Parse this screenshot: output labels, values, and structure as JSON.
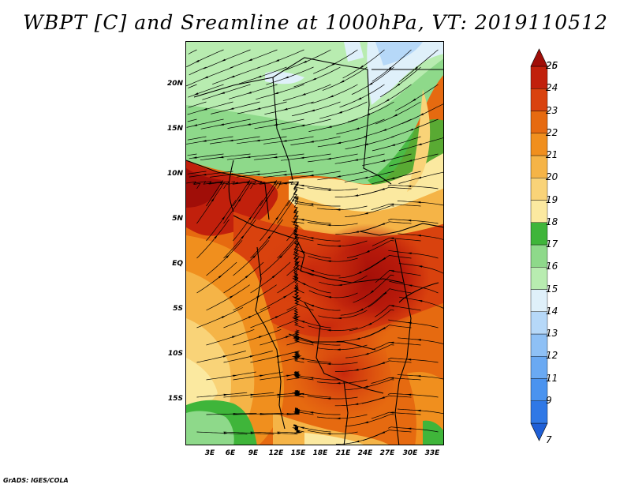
{
  "title": "WBPT [C] and Sreamline at 1000hPa, VT: 2019110512",
  "credit": "GrADS: IGES/COLA",
  "map": {
    "latitude_ticks": [
      "20N",
      "15N",
      "10N",
      "5N",
      "EQ",
      "5S",
      "10S",
      "15S"
    ],
    "longitude_ticks": [
      "3E",
      "6E",
      "9E",
      "12E",
      "15E",
      "18E",
      "21E",
      "24E",
      "27E",
      "30E",
      "33E"
    ],
    "variable": "WBPT [C]",
    "overlay": "Streamline",
    "level": "1000hPa",
    "valid_time": "2019110512"
  },
  "colorbar": {
    "labels": [
      "7",
      "9",
      "11",
      "12",
      "13",
      "14",
      "15",
      "16",
      "17",
      "18",
      "19",
      "20",
      "21",
      "22",
      "23",
      "24",
      "25",
      "26"
    ],
    "colors": [
      "#1f5fd6",
      "#2f78e6",
      "#4a93ef",
      "#6aa9f2",
      "#8ec0f5",
      "#b6d8f8",
      "#dff0fa",
      "#b8ecb0",
      "#8ed98a",
      "#3fb53a",
      "#fbe9a0",
      "#f9d378",
      "#f5b447",
      "#f08f1e",
      "#e66a10",
      "#d9420e",
      "#c1200c",
      "#a00e08"
    ]
  }
}
